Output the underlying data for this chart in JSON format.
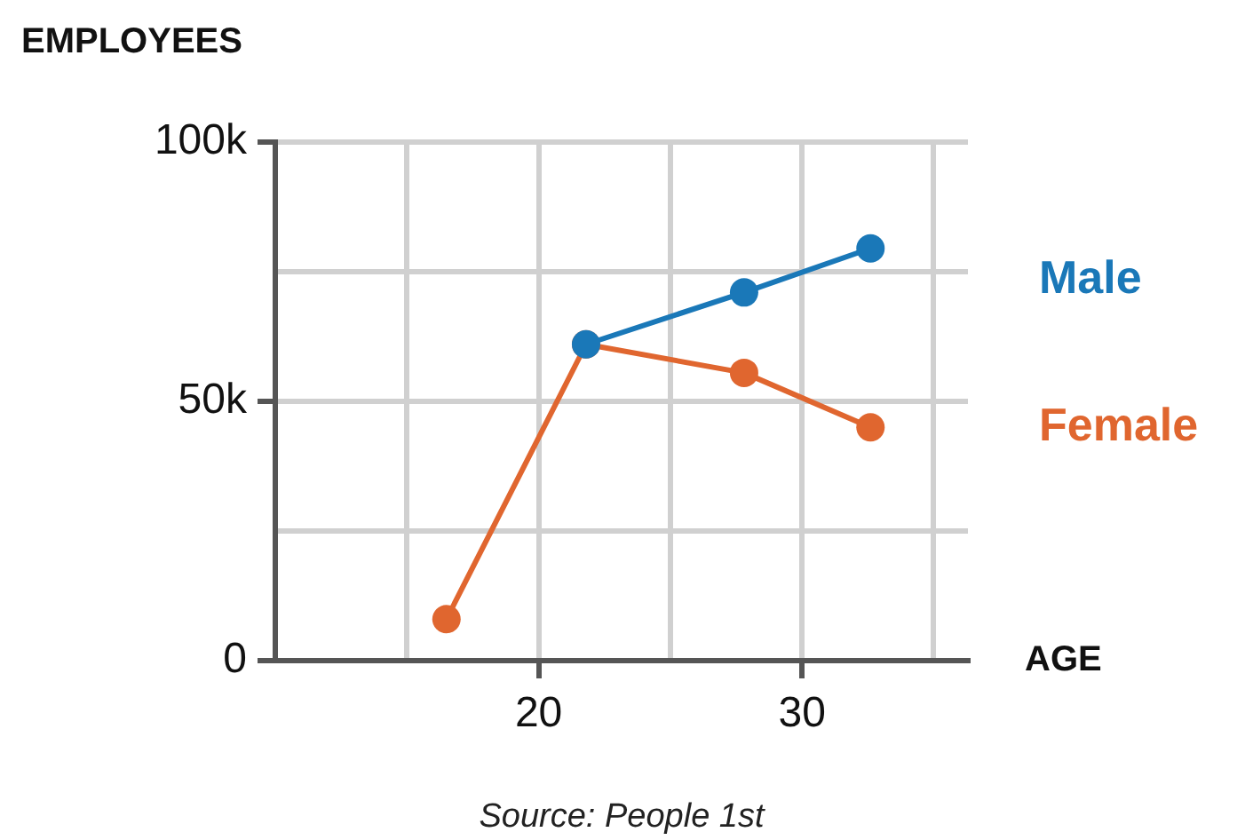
{
  "chart_data": {
    "type": "line",
    "xlabel": "AGE",
    "ylabel": "EMPLOYEES",
    "annotations": [
      "Source: People 1st"
    ],
    "series": [
      {
        "name": "Male",
        "color": "#1a78b8",
        "x": [
          21.8,
          27.8,
          32.6
        ],
        "values": [
          61000,
          71000,
          79500
        ]
      },
      {
        "name": "Female",
        "color": "#e0662f",
        "x": [
          16.5,
          21.8,
          27.8,
          32.6
        ],
        "values": [
          8000,
          61000,
          55500,
          45000
        ]
      }
    ],
    "xlim": [
      10,
      36.3
    ],
    "xticks": [
      {
        "value": 10,
        "label": null
      },
      {
        "value": 15,
        "label": null
      },
      20,
      {
        "value": 25,
        "label": null
      },
      30,
      {
        "value": 35,
        "label": null
      }
    ],
    "ylim": [
      0,
      100000
    ],
    "yticks": [
      0,
      {
        "value": 25000,
        "label": null
      },
      {
        "value": 50000,
        "label": "50k"
      },
      {
        "value": 75000,
        "label": null
      },
      {
        "value": 100000,
        "label": "100k"
      }
    ],
    "grid": true,
    "legend": false,
    "marker": "circle",
    "line_style": "solid"
  }
}
